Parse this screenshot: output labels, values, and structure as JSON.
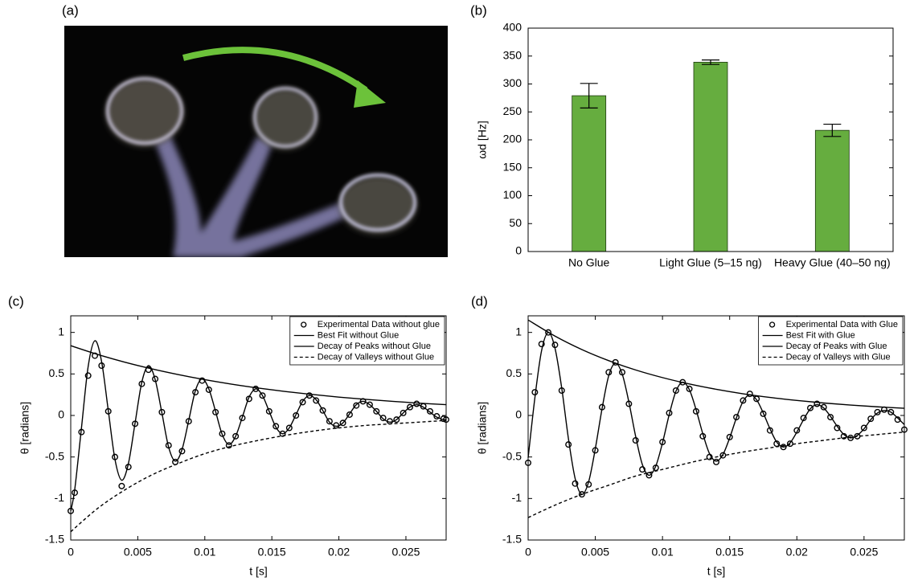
{
  "chart_data": [
    {
      "type": "image",
      "panel": "(a)"
    },
    {
      "type": "bar",
      "panel": "(b)",
      "ylabel": "ωd [Hz]",
      "categories": [
        "No Glue",
        "Light Glue (5–15 ng)",
        "Heavy Glue (40–50 ng)"
      ],
      "values": [
        279,
        339,
        217
      ],
      "errors": [
        22,
        4,
        11
      ],
      "color": "#66ad3f",
      "ylim": [
        0,
        400
      ],
      "yticks": [
        0,
        50,
        100,
        150,
        200,
        250,
        300,
        350,
        400
      ]
    },
    {
      "type": "line",
      "panel": "(c)",
      "xlabel": "t [s]",
      "ylabel": "θ [radians]",
      "xlim": [
        0,
        0.028
      ],
      "xticks": [
        0,
        0.005,
        0.01,
        0.015,
        0.02,
        0.025
      ],
      "ylim": [
        -1.5,
        1.2
      ],
      "yticks": [
        -1.5,
        -1,
        -0.5,
        0,
        0.5,
        1
      ],
      "legend": "upper right",
      "series": [
        {
          "name": "Experimental Data without glue",
          "color": "#000000",
          "marker": "o",
          "linestyle": "none",
          "x": [
            0,
            0.0003,
            0.0008,
            0.0013,
            0.0018,
            0.0023,
            0.0028,
            0.0033,
            0.0038,
            0.0043,
            0.0048,
            0.0053,
            0.0058,
            0.0063,
            0.0068,
            0.0073,
            0.0078,
            0.0083,
            0.0088,
            0.0093,
            0.0098,
            0.0103,
            0.0108,
            0.0113,
            0.0118,
            0.0123,
            0.0128,
            0.0133,
            0.0138,
            0.0143,
            0.0148,
            0.0153,
            0.0158,
            0.0163,
            0.0168,
            0.0173,
            0.0178,
            0.0183,
            0.0188,
            0.0193,
            0.0198,
            0.0203,
            0.0208,
            0.0213,
            0.0218,
            0.0223,
            0.0228,
            0.0233,
            0.0238,
            0.0243,
            0.0248,
            0.0253,
            0.0258,
            0.0263,
            0.0268,
            0.0273,
            0.0278,
            0.028
          ],
          "values": [
            -1.15,
            -0.93,
            -0.2,
            0.48,
            0.72,
            0.6,
            0.05,
            -0.5,
            -0.85,
            -0.62,
            -0.1,
            0.38,
            0.55,
            0.44,
            0.04,
            -0.36,
            -0.56,
            -0.43,
            -0.07,
            0.28,
            0.42,
            0.31,
            0.04,
            -0.22,
            -0.36,
            -0.25,
            -0.03,
            0.2,
            0.32,
            0.24,
            0.05,
            -0.13,
            -0.22,
            -0.15,
            0,
            0.16,
            0.24,
            0.18,
            0.06,
            -0.07,
            -0.12,
            -0.09,
            0.01,
            0.12,
            0.17,
            0.13,
            0.05,
            -0.03,
            -0.07,
            -0.05,
            0.03,
            0.1,
            0.14,
            0.11,
            0.05,
            -0.01,
            -0.04,
            -0.05
          ]
        },
        {
          "name": "Best Fit without Glue",
          "color": "#000000",
          "linestyle": "solid",
          "x": [
            0,
            0.0003,
            0.0008,
            0.0013,
            0.0018,
            0.0023,
            0.0028,
            0.0033,
            0.0038,
            0.0043,
            0.0048,
            0.0053,
            0.0058,
            0.0063,
            0.0068,
            0.0073,
            0.0078,
            0.0083,
            0.0088,
            0.0093,
            0.0098,
            0.0103,
            0.0108,
            0.0113,
            0.0118,
            0.0123,
            0.0128,
            0.0133,
            0.0138,
            0.0143,
            0.0148,
            0.0153,
            0.0158,
            0.0163,
            0.0168,
            0.0173,
            0.0178,
            0.0183,
            0.0188,
            0.0193,
            0.0198,
            0.0203,
            0.0208,
            0.0213,
            0.0218,
            0.0223,
            0.0228,
            0.0233,
            0.0238,
            0.0243,
            0.0248,
            0.0253,
            0.0258,
            0.0263,
            0.0268,
            0.0273,
            0.0278,
            0.028
          ],
          "values": [
            -1.15,
            -0.89,
            -0.15,
            0.59,
            0.9,
            0.65,
            0.06,
            -0.53,
            -0.78,
            -0.58,
            -0.09,
            0.4,
            0.6,
            0.43,
            0.03,
            -0.38,
            -0.55,
            -0.41,
            -0.06,
            0.3,
            0.44,
            0.32,
            0.05,
            -0.23,
            -0.35,
            -0.25,
            -0.02,
            0.22,
            0.32,
            0.24,
            0.05,
            -0.14,
            -0.22,
            -0.15,
            0.01,
            0.17,
            0.24,
            0.19,
            0.06,
            -0.08,
            -0.13,
            -0.09,
            0.02,
            0.13,
            0.17,
            0.13,
            0.05,
            -0.04,
            -0.08,
            -0.05,
            0.03,
            0.1,
            0.13,
            0.1,
            0.04,
            -0.02,
            -0.05,
            -0.05
          ]
        },
        {
          "name": "Decay of Peaks without Glue",
          "color": "#000000",
          "linestyle": "solid",
          "x": [
            0,
            0.002,
            0.004,
            0.006,
            0.008,
            0.01,
            0.012,
            0.014,
            0.016,
            0.018,
            0.02,
            0.022,
            0.024,
            0.026,
            0.028
          ],
          "values": [
            0.84,
            0.735,
            0.643,
            0.563,
            0.493,
            0.431,
            0.377,
            0.33,
            0.289,
            0.253,
            0.221,
            0.194,
            0.17,
            0.148,
            0.13
          ]
        },
        {
          "name": "Decay of Valleys without Glue",
          "color": "#000000",
          "linestyle": "dashed",
          "x": [
            0,
            0.002,
            0.004,
            0.006,
            0.008,
            0.01,
            0.012,
            0.014,
            0.016,
            0.018,
            0.02,
            0.022,
            0.024,
            0.026,
            0.028
          ],
          "values": [
            -1.4,
            -1.12,
            -0.9,
            -0.72,
            -0.58,
            -0.46,
            -0.37,
            -0.3,
            -0.24,
            -0.19,
            -0.15,
            -0.12,
            -0.1,
            -0.08,
            -0.06
          ]
        }
      ]
    },
    {
      "type": "line",
      "panel": "(d)",
      "xlabel": "t [s]",
      "ylabel": "θ [radians]",
      "xlim": [
        0,
        0.028
      ],
      "xticks": [
        0,
        0.005,
        0.01,
        0.015,
        0.02,
        0.025
      ],
      "ylim": [
        -1.5,
        1.2
      ],
      "yticks": [
        -1.5,
        -1,
        -0.5,
        0,
        0.5,
        1
      ],
      "legend": "upper right",
      "series": [
        {
          "name": "Experimental Data with Glue",
          "color": "#000000",
          "marker": "o",
          "linestyle": "none",
          "x": [
            0,
            0.0005,
            0.001,
            0.0015,
            0.002,
            0.0025,
            0.003,
            0.0035,
            0.004,
            0.0045,
            0.005,
            0.0055,
            0.006,
            0.0065,
            0.007,
            0.0075,
            0.008,
            0.0085,
            0.009,
            0.0095,
            0.01,
            0.0105,
            0.011,
            0.0115,
            0.012,
            0.0125,
            0.013,
            0.0135,
            0.014,
            0.0145,
            0.015,
            0.0155,
            0.016,
            0.0165,
            0.017,
            0.0175,
            0.018,
            0.0185,
            0.019,
            0.0195,
            0.02,
            0.0205,
            0.021,
            0.0215,
            0.022,
            0.0225,
            0.023,
            0.0235,
            0.024,
            0.0245,
            0.025,
            0.0255,
            0.026,
            0.0265,
            0.027,
            0.0275,
            0.028
          ],
          "values": [
            -0.57,
            0.28,
            0.86,
            1.0,
            0.85,
            0.3,
            -0.35,
            -0.82,
            -0.95,
            -0.83,
            -0.42,
            0.1,
            0.52,
            0.64,
            0.52,
            0.14,
            -0.3,
            -0.65,
            -0.72,
            -0.63,
            -0.32,
            0.03,
            0.3,
            0.4,
            0.32,
            0.05,
            -0.25,
            -0.5,
            -0.56,
            -0.48,
            -0.26,
            -0.02,
            0.18,
            0.26,
            0.2,
            0.02,
            -0.18,
            -0.34,
            -0.38,
            -0.34,
            -0.18,
            -0.03,
            0.09,
            0.14,
            0.1,
            -0.02,
            -0.15,
            -0.25,
            -0.27,
            -0.25,
            -0.15,
            -0.04,
            0.04,
            0.07,
            0.04,
            -0.05,
            -0.17
          ]
        },
        {
          "name": "Best Fit with Glue",
          "color": "#000000",
          "linestyle": "solid",
          "x": [
            0,
            0.0005,
            0.001,
            0.0015,
            0.002,
            0.0025,
            0.003,
            0.0035,
            0.004,
            0.0045,
            0.005,
            0.0055,
            0.006,
            0.0065,
            0.007,
            0.0075,
            0.008,
            0.0085,
            0.009,
            0.0095,
            0.01,
            0.0105,
            0.011,
            0.0115,
            0.012,
            0.0125,
            0.013,
            0.0135,
            0.014,
            0.0145,
            0.015,
            0.0155,
            0.016,
            0.0165,
            0.017,
            0.0175,
            0.018,
            0.0185,
            0.019,
            0.0195,
            0.02,
            0.0205,
            0.021,
            0.0215,
            0.022,
            0.0225,
            0.023,
            0.0235,
            0.024,
            0.0245,
            0.025,
            0.0255,
            0.026,
            0.0265,
            0.027,
            0.0275,
            0.028
          ],
          "values": [
            -0.51,
            0.21,
            0.78,
            1.0,
            0.81,
            0.33,
            -0.28,
            -0.76,
            -0.95,
            -0.8,
            -0.4,
            0.08,
            0.48,
            0.63,
            0.5,
            0.16,
            -0.25,
            -0.59,
            -0.72,
            -0.61,
            -0.33,
            0.01,
            0.29,
            0.4,
            0.31,
            0.07,
            -0.22,
            -0.46,
            -0.55,
            -0.47,
            -0.27,
            -0.03,
            0.17,
            0.25,
            0.19,
            0.03,
            -0.16,
            -0.32,
            -0.38,
            -0.33,
            -0.2,
            -0.05,
            0.08,
            0.13,
            0.09,
            -0.01,
            -0.13,
            -0.23,
            -0.27,
            -0.24,
            -0.16,
            -0.05,
            0.03,
            0.06,
            0.04,
            -0.03,
            -0.11
          ]
        },
        {
          "name": "Decay of Peaks with Glue",
          "color": "#000000",
          "linestyle": "solid",
          "x": [
            0,
            0.002,
            0.004,
            0.006,
            0.008,
            0.01,
            0.012,
            0.014,
            0.016,
            0.018,
            0.02,
            0.022,
            0.024,
            0.026,
            0.028
          ],
          "values": [
            1.15,
            0.956,
            0.794,
            0.66,
            0.548,
            0.456,
            0.379,
            0.315,
            0.261,
            0.217,
            0.181,
            0.15,
            0.125,
            0.104,
            0.086
          ]
        },
        {
          "name": "Decay of Valleys with Glue",
          "color": "#000000",
          "linestyle": "dashed",
          "x": [
            0,
            0.002,
            0.004,
            0.006,
            0.008,
            0.01,
            0.012,
            0.014,
            0.016,
            0.018,
            0.02,
            0.022,
            0.024,
            0.026,
            0.028
          ],
          "values": [
            -1.23,
            -1.08,
            -0.95,
            -0.84,
            -0.73,
            -0.65,
            -0.57,
            -0.5,
            -0.44,
            -0.39,
            -0.34,
            -0.3,
            -0.26,
            -0.23,
            -0.2
          ]
        }
      ]
    }
  ]
}
